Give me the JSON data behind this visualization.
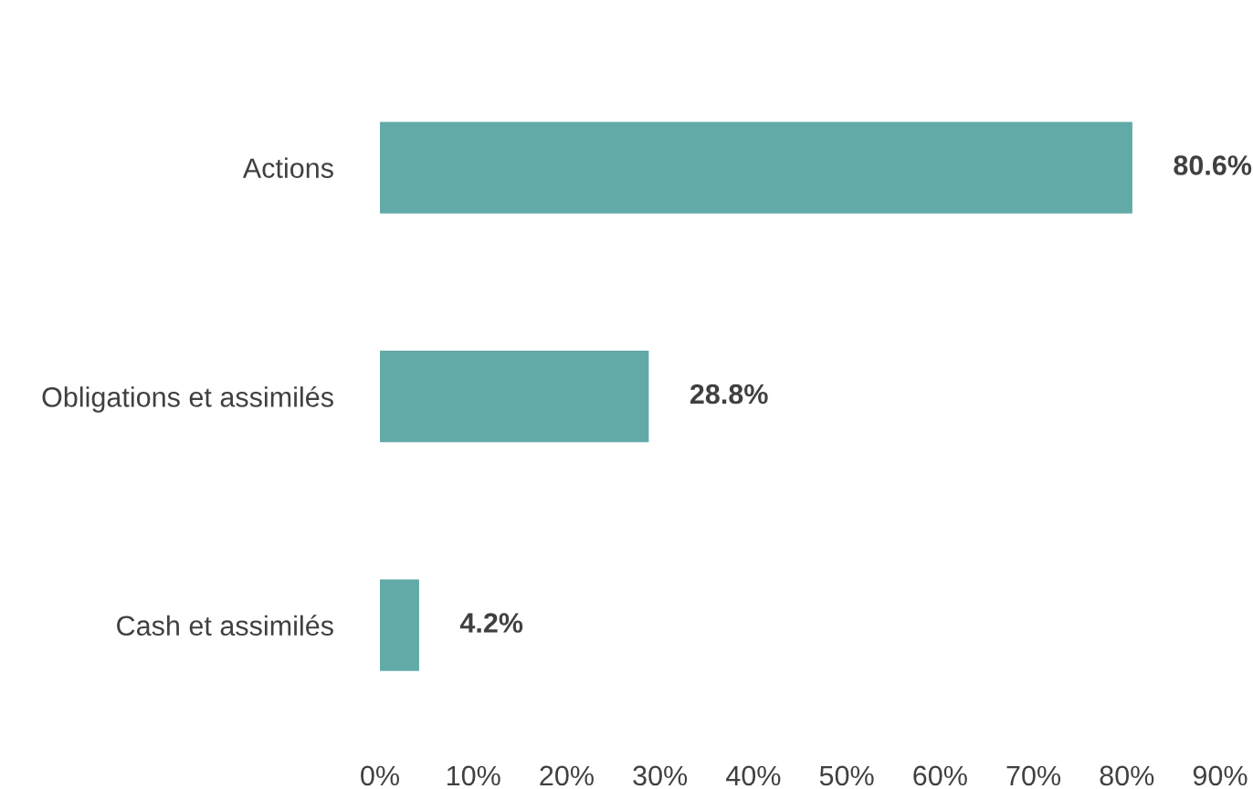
{
  "chart_data": {
    "type": "bar",
    "orientation": "horizontal",
    "categories": [
      "Actions",
      "Obligations et assimilés",
      "Cash et assimilés"
    ],
    "values": [
      80.6,
      28.8,
      4.2
    ],
    "color": "#62aaa8",
    "value_labels": [
      "80.6%",
      "28.8%",
      "4.2%"
    ],
    "xlim": [
      0,
      90
    ],
    "xticks": [
      {
        "value": 0,
        "label": "0%"
      },
      {
        "value": 10,
        "label": "10%"
      },
      {
        "value": 20,
        "label": "20%"
      },
      {
        "value": 30,
        "label": "30%"
      },
      {
        "value": 40,
        "label": "40%"
      },
      {
        "value": 50,
        "label": "50%"
      },
      {
        "value": 60,
        "label": "60%"
      },
      {
        "value": 70,
        "label": "70%"
      },
      {
        "value": 80,
        "label": "80%"
      },
      {
        "value": 90,
        "label": "90%"
      }
    ],
    "grid": false,
    "legend": false
  }
}
